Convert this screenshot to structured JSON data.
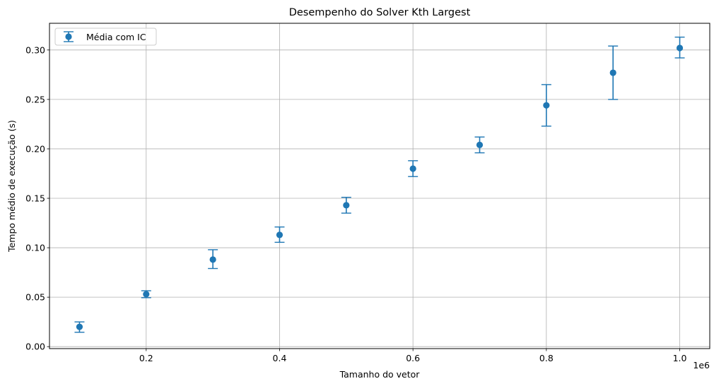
{
  "chart_data": {
    "type": "scatter",
    "title": "Desempenho do Solver Kth Largest",
    "xlabel": "Tamanho do vetor",
    "ylabel": "Tempo médio de execução (s)",
    "x_offset_label": "1e6",
    "xlim": [
      55000,
      1045000
    ],
    "ylim": [
      -0.002,
      0.327
    ],
    "x_ticks": [
      200000,
      400000,
      600000,
      800000,
      1000000
    ],
    "x_tick_labels": [
      "0.2",
      "0.4",
      "0.6",
      "0.8",
      "1.0"
    ],
    "y_ticks": [
      0.0,
      0.05,
      0.1,
      0.15,
      0.2,
      0.25,
      0.3
    ],
    "y_tick_labels": [
      "0.00",
      "0.05",
      "0.10",
      "0.15",
      "0.20",
      "0.25",
      "0.30"
    ],
    "grid": true,
    "legend_position": "top-left",
    "series": [
      {
        "name": "Média com IC",
        "color": "#1f77b4",
        "x": [
          100000,
          200000,
          300000,
          400000,
          500000,
          600000,
          700000,
          800000,
          900000,
          1000000
        ],
        "y": [
          0.02,
          0.053,
          0.088,
          0.113,
          0.143,
          0.18,
          0.204,
          0.244,
          0.277,
          0.302
        ],
        "err_low": [
          0.0145,
          0.0495,
          0.079,
          0.1055,
          0.135,
          0.172,
          0.196,
          0.223,
          0.25,
          0.292
        ],
        "err_high": [
          0.025,
          0.0565,
          0.098,
          0.121,
          0.151,
          0.188,
          0.212,
          0.265,
          0.304,
          0.313
        ]
      }
    ]
  }
}
